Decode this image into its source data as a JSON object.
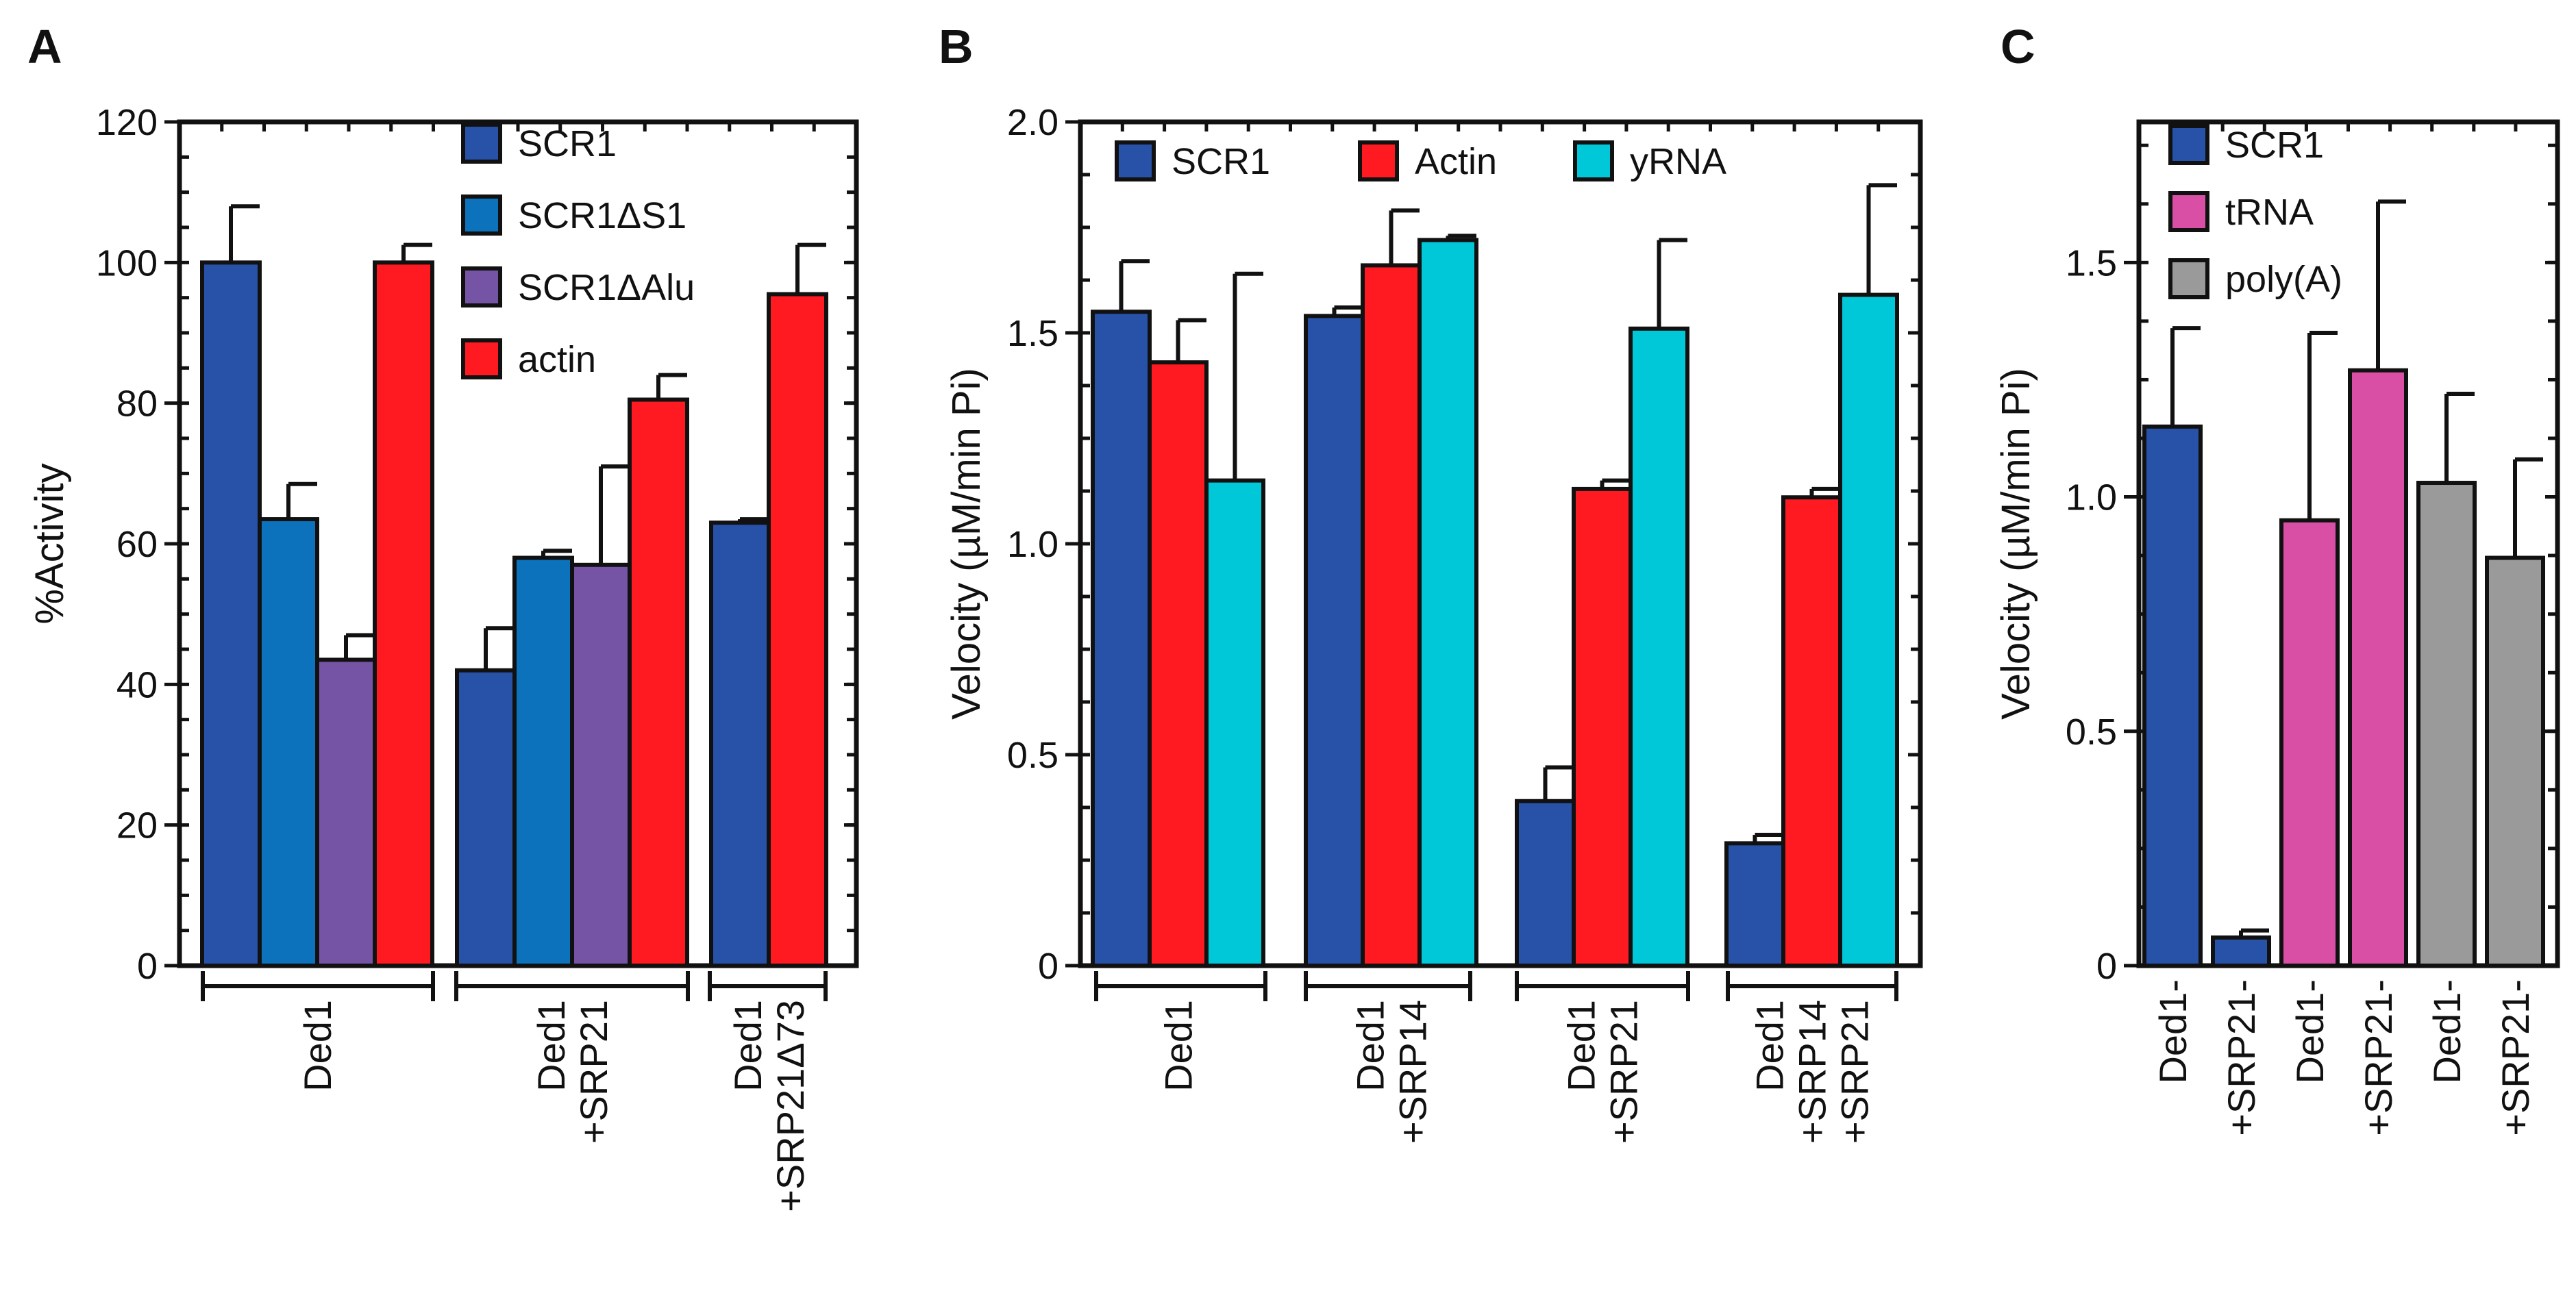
{
  "chart_data": [
    {
      "panel": "A",
      "type": "bar",
      "ylabel": "%Activity",
      "ylim": [
        0,
        120
      ],
      "yticks": [
        "0",
        "20",
        "40",
        "60",
        "80",
        "100",
        "120"
      ],
      "legend": [
        {
          "name": "SCR1",
          "color": "#2752a8"
        },
        {
          "name": "SCR1ΔS1",
          "color": "#0b72bb"
        },
        {
          "name": "SCR1ΔAlu",
          "color": "#7654a5"
        },
        {
          "name": "actin",
          "color": "#ff1a22"
        }
      ],
      "groups": [
        {
          "label_lines": [
            "Ded1"
          ],
          "bars": [
            {
              "series": "SCR1",
              "value": 100,
              "err": 8
            },
            {
              "series": "SCR1ΔS1",
              "value": 63.5,
              "err": 5
            },
            {
              "series": "SCR1ΔAlu",
              "value": 43.5,
              "err": 3.5
            },
            {
              "series": "actin",
              "value": 100,
              "err": 2.5
            }
          ]
        },
        {
          "label_lines": [
            "Ded1",
            "+SRP21"
          ],
          "bars": [
            {
              "series": "SCR1",
              "value": 42,
              "err": 6
            },
            {
              "series": "SCR1ΔS1",
              "value": 58,
              "err": 1
            },
            {
              "series": "SCR1ΔAlu",
              "value": 57,
              "err": 14
            },
            {
              "series": "actin",
              "value": 80.5,
              "err": 3.5
            }
          ]
        },
        {
          "label_lines": [
            "Ded1",
            "+SRP21Δ73"
          ],
          "bars": [
            {
              "series": "SCR1",
              "value": 63,
              "err": 0.5
            },
            {
              "series": "actin",
              "value": 95.5,
              "err": 7
            }
          ]
        }
      ]
    },
    {
      "panel": "B",
      "type": "bar",
      "ylabel": "Velocity (µM/min Pi)",
      "ylim": [
        0,
        2.0
      ],
      "yticks": [
        "0",
        "0.5",
        "1.0",
        "1.5",
        "2.0"
      ],
      "legend": [
        {
          "name": "SCR1",
          "color": "#2752a8"
        },
        {
          "name": "Actin",
          "color": "#ff1a22"
        },
        {
          "name": "yRNA",
          "color": "#00c8d8"
        }
      ],
      "groups": [
        {
          "label_lines": [
            "Ded1"
          ],
          "bars": [
            {
              "series": "SCR1",
              "value": 1.55,
              "err": 0.12
            },
            {
              "series": "Actin",
              "value": 1.43,
              "err": 0.1
            },
            {
              "series": "yRNA",
              "value": 1.15,
              "err": 0.49
            }
          ]
        },
        {
          "label_lines": [
            "Ded1",
            "+SRP14"
          ],
          "bars": [
            {
              "series": "SCR1",
              "value": 1.54,
              "err": 0.02
            },
            {
              "series": "Actin",
              "value": 1.66,
              "err": 0.13
            },
            {
              "series": "yRNA",
              "value": 1.72,
              "err": 0.01
            }
          ]
        },
        {
          "label_lines": [
            "Ded1",
            "+SRP21"
          ],
          "bars": [
            {
              "series": "SCR1",
              "value": 0.39,
              "err": 0.08
            },
            {
              "series": "Actin",
              "value": 1.13,
              "err": 0.02
            },
            {
              "series": "yRNA",
              "value": 1.51,
              "err": 0.21
            }
          ]
        },
        {
          "label_lines": [
            "Ded1",
            "+SRP14",
            "+SRP21"
          ],
          "bars": [
            {
              "series": "SCR1",
              "value": 0.29,
              "err": 0.02
            },
            {
              "series": "Actin",
              "value": 1.11,
              "err": 0.02
            },
            {
              "series": "yRNA",
              "value": 1.59,
              "err": 0.26
            }
          ]
        }
      ]
    },
    {
      "panel": "C",
      "type": "bar",
      "ylabel": "Velocity (µM/min Pi)",
      "ylim": [
        0,
        1.8
      ],
      "yticks": [
        "0",
        "0.5",
        "1.0",
        "1.5"
      ],
      "legend": [
        {
          "name": "SCR1",
          "color": "#2752a8"
        },
        {
          "name": "tRNA",
          "color": "#d94fa6"
        },
        {
          "name": "poly(A)",
          "color": "#9a9a9a"
        }
      ],
      "groups": [
        {
          "label_lines": [
            "Ded1-"
          ],
          "bars": [
            {
              "series": "SCR1",
              "value": 1.15,
              "err": 0.21
            }
          ]
        },
        {
          "label_lines": [
            "+SRP21-"
          ],
          "bars": [
            {
              "series": "SCR1",
              "value": 0.06,
              "err": 0.015
            }
          ]
        },
        {
          "label_lines": [
            "Ded1-"
          ],
          "bars": [
            {
              "series": "tRNA",
              "value": 0.95,
              "err": 0.4
            }
          ]
        },
        {
          "label_lines": [
            "+SRP21-"
          ],
          "bars": [
            {
              "series": "tRNA",
              "value": 1.27,
              "err": 0.36
            }
          ]
        },
        {
          "label_lines": [
            "Ded1-"
          ],
          "bars": [
            {
              "series": "poly(A)",
              "value": 1.03,
              "err": 0.19
            }
          ]
        },
        {
          "label_lines": [
            "+SRP21-"
          ],
          "bars": [
            {
              "series": "poly(A)",
              "value": 0.87,
              "err": 0.21
            }
          ]
        }
      ]
    }
  ]
}
